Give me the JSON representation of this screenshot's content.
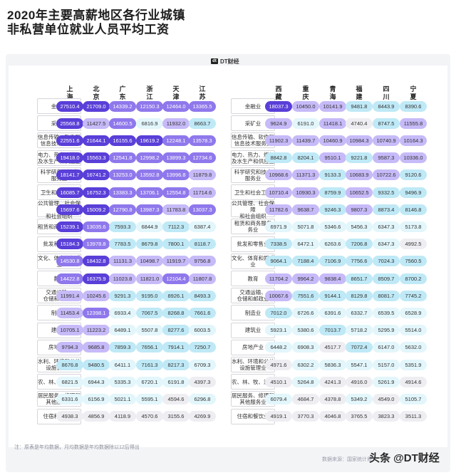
{
  "title_line1": "2020年主要高薪地区各行业城镇",
  "title_line2": "非私营单位就业人员平均工资",
  "logo_text": "DT财经",
  "logo_mark": "dt",
  "note": "注：原表是年均数据，月均数据是年均数据除以12后得出",
  "source": "数据来源：国家统计局",
  "brand": "头条 @DT财经",
  "colors": {
    "top": "#5a3fd8",
    "high": "#8f78ec",
    "upper": "#c7baf8",
    "mid": "#bfe9f6",
    "low": "#e2f6fb",
    "lowest": "#eeeef2",
    "text_dark": "#333333",
    "text_light": "#ffffff"
  },
  "chart_data": [
    {
      "type": "table",
      "regions": [
        "上海",
        "北京",
        "广东",
        "浙江",
        "天津",
        "江苏"
      ],
      "industries": [
        "金融业",
        "采矿业",
        "信息传输、软件和信息技术服务业",
        "电力、热力、燃气及水生产和供应业",
        "科学研究和技术服务业",
        "卫生和社会工作",
        "公共管理、社会保障和社会组织",
        "租赁和商务服务业",
        "批发和零售业",
        "文化、体育和娱乐业",
        "教育",
        "交通运输、仓储和邮政业",
        "制造业",
        "建筑业",
        "房地产业",
        "水利、环境和公共设施管理业",
        "农、林、牧、渔业",
        "居民服务、修理和其他服务业",
        "住宿和餐饮业"
      ],
      "industry_labels": [
        "金融业",
        "采矿业",
        "信息传输、软件和\n信息技术服务业",
        "电力、热力、燃气\n及水生产和供应业",
        "科学研究和技术\n服务业",
        "卫生和社会工作",
        "公共管理、社会保障\n和社会组织",
        "租赁和商务服务业",
        "批发和零售业",
        "文化、体育和娱乐业",
        "教育",
        "交通运输、\n仓储和邮政业",
        "制造业",
        "建筑业",
        "房地产业",
        "水利、环境和公共\n设施管理业",
        "农、林、牧、渔业",
        "居民服务、修理和\n其他服务业",
        "住宿和餐饮业"
      ],
      "values": [
        [
          27510.4,
          21709.0,
          14339.2,
          12150.3,
          12464.0,
          13365.5
        ],
        [
          25568.8,
          11427.5,
          14600.5,
          6816.9,
          11932.0,
          8663.7
        ],
        [
          22551.6,
          21644.1,
          16155.6,
          19619.2,
          12248.1,
          13578.3
        ],
        [
          19418.0,
          15563.3,
          12541.8,
          12998.2,
          13899.3,
          12734.6
        ],
        [
          18141.7,
          16741.2,
          13253.0,
          13592.8,
          13996.8,
          11879.8
        ],
        [
          16085.7,
          16752.3,
          13383.3,
          13706.1,
          12554.8,
          11714.6
        ],
        [
          15697.6,
          15009.2,
          12790.8,
          13987.3,
          11783.8,
          13037.3
        ],
        [
          15239.1,
          13035.6,
          7593.3,
          6844.9,
          7112.3,
          6387.4
        ],
        [
          15184.3,
          13978.8,
          7783.5,
          8679.8,
          7800.1,
          8118.7
        ],
        [
          14530.8,
          18432.8,
          11131.3,
          10498.7,
          11919.7,
          9756.8
        ],
        [
          14422.8,
          16375.9,
          11023.8,
          11821.0,
          12104.4,
          11807.8
        ],
        [
          11991.4,
          10245.6,
          9291.3,
          9195.0,
          8926.1,
          8493.3
        ],
        [
          11453.4,
          12398.1,
          6933.4,
          7067.5,
          8268.8,
          7661.6
        ],
        [
          10705.1,
          11223.2,
          6489.1,
          5507.8,
          8277.6,
          6003.5
        ],
        [
          9794.3,
          9685.8,
          7859.3,
          7656.1,
          7914.1,
          7250.7
        ],
        [
          8676.8,
          9480.5,
          6411.1,
          7161.3,
          8217.3,
          6709.3
        ],
        [
          6821.5,
          6944.3,
          5335.3,
          6720.1,
          6191.8,
          4397.3
        ],
        [
          6331.6,
          6156.9,
          5021.1,
          5595.1,
          4594.6,
          6296.8
        ],
        [
          4938.3,
          4856.9,
          4118.9,
          4570.6,
          3155.6,
          4269.9
        ]
      ]
    },
    {
      "type": "table",
      "regions": [
        "西藏",
        "重庆",
        "青海",
        "福建",
        "四川",
        "宁夏"
      ],
      "industries": [
        "金融业",
        "采矿业",
        "信息传输、软件和信息技术服务业",
        "电力、热力、燃气及水生产和供应业",
        "科学研究和技术服务业",
        "卫生和社会工作",
        "公共管理、社会保障和社会组织",
        "租赁和商务服务业",
        "批发和零售业",
        "文化、体育和娱乐业",
        "教育",
        "交通运输、仓储和邮政业",
        "制造业",
        "建筑业",
        "房地产业",
        "水利、环境和公共设施管理业",
        "农、林、牧、渔业",
        "居民服务、修理和其他服务业",
        "住宿和餐饮业"
      ],
      "industry_labels": [
        "金融业",
        "采矿业",
        "信息传输、软件和\n信息技术服务业",
        "电力、热力、燃气\n及水生产和供应业",
        "科学研究和技术\n服务业",
        "卫生和社会工作",
        "公共管理、社会保障\n和社会组织",
        "租赁和商务服务 务业",
        "批发和零售业",
        "文化、体育和娱乐业",
        "教育",
        "交通运输、\n仓储和邮政业",
        "制造业",
        "建筑业",
        "房地产业",
        "水利、环境和公共\n设施管理业",
        "农、林、牧、渔业",
        "居民服务、修理和\n其他服务业",
        "住宿和餐饮业"
      ],
      "values": [
        [
          18037.3,
          10450.0,
          10141.9,
          9481.8,
          8443.9,
          8390.6
        ],
        [
          9624.9,
          6191.0,
          11418.1,
          4740.4,
          8747.5,
          11555.8
        ],
        [
          11902.3,
          11439.7,
          10460.9,
          10984.3,
          10740.9,
          10164.3
        ],
        [
          8842.8,
          8204.1,
          9510.1,
          9221.8,
          9587.3,
          10336.0
        ],
        [
          10968.6,
          11371.3,
          9133.3,
          10683.9,
          10722.6,
          9120.6
        ],
        [
          10710.4,
          10930.3,
          8759.9,
          10652.5,
          9332.5,
          9496.9
        ],
        [
          11782.6,
          9638.7,
          9246.3,
          9807.3,
          8873.4,
          8146.8
        ],
        [
          6971.9,
          5071.8,
          5346.6,
          5456.3,
          6347.3,
          5173.8
        ],
        [
          7338.5,
          6472.1,
          6263.6,
          7206.8,
          6347.3,
          4992.5
        ],
        [
          9064.1,
          7188.4,
          7106.9,
          7756.6,
          7024.3,
          7560.5
        ],
        [
          11704.2,
          9964.2,
          9838.4,
          8651.7,
          8509.7,
          8700.2
        ],
        [
          10067.6,
          7551.6,
          9144.1,
          8129.8,
          8081.7,
          7745.2
        ],
        [
          7012.0,
          6726.6,
          6391.6,
          6332.7,
          6539.5,
          6528.9
        ],
        [
          5923.1,
          5380.6,
          7013.7,
          5718.2,
          5295.9,
          5514.0
        ],
        [
          6448.2,
          6908.3,
          4517.7,
          7072.4,
          6147.0,
          5632.0
        ],
        [
          4971.6,
          6302.2,
          5836.3,
          5547.1,
          5157.0,
          5351.9
        ],
        [
          4510.1,
          5264.8,
          4241.3,
          4916.0,
          5261.9,
          4914.6
        ],
        [
          6079.4,
          4684.7,
          4378.8,
          5349.2,
          4549.0,
          5105.7
        ],
        [
          4919.1,
          3770.3,
          4046.8,
          3765.5,
          3823.3,
          3511.3
        ]
      ]
    }
  ]
}
